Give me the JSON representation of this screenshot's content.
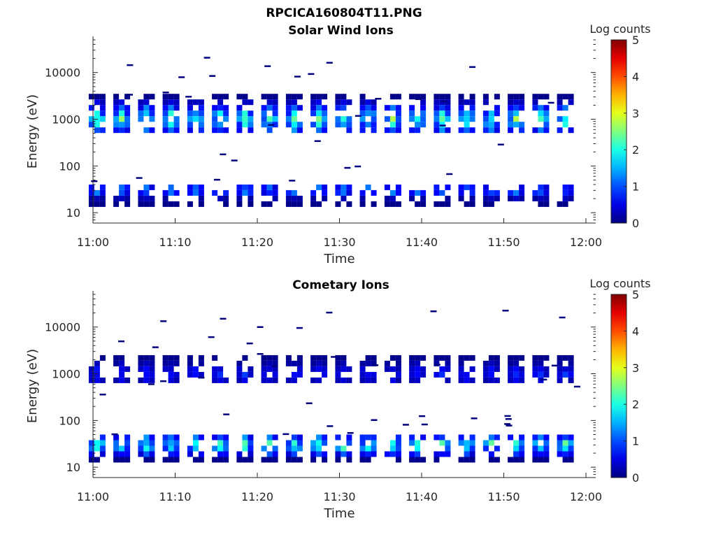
{
  "figure_title": "RPCICA160804T11.PNG",
  "chart_data": [
    {
      "type": "heatmap",
      "title": "Solar Wind Ions",
      "xlabel": "Time",
      "ylabel": "Energy (eV)",
      "x_ticks": [
        "11:00",
        "11:10",
        "11:20",
        "11:30",
        "11:40",
        "11:50",
        "12:00"
      ],
      "y_ticks": [
        "10",
        "100",
        "1000",
        "10000"
      ],
      "y_scale": "log",
      "xlim": [
        "11:00",
        "12:00"
      ],
      "ylim": [
        6,
        50000
      ],
      "colorbar": {
        "label": "Log counts",
        "ticks": [
          "0",
          "1",
          "2",
          "3",
          "4",
          "5"
        ],
        "range": [
          0,
          5
        ],
        "colormap": "jet"
      },
      "sweep_times_min": [
        0.5,
        3.5,
        6.5,
        9.5,
        12.5,
        15.5,
        18.5,
        21.5,
        24.5,
        27.5,
        30.5,
        33.5,
        36.5,
        39.5,
        42.5,
        45.5,
        48.5,
        51.5,
        54.5,
        57.5
      ],
      "bands": [
        {
          "name": "solar-wind",
          "center_eV": 1000,
          "low_eV": 600,
          "high_eV": 3500,
          "peak_log_counts": 2.9
        },
        {
          "name": "low-energy",
          "center_eV": 30,
          "low_eV": 17,
          "high_eV": 40,
          "peak_log_counts": 1.8
        }
      ],
      "grid": false
    },
    {
      "type": "heatmap",
      "title": "Cometary Ions",
      "xlabel": "Time",
      "ylabel": "Energy (eV)",
      "x_ticks": [
        "11:00",
        "11:10",
        "11:20",
        "11:30",
        "11:40",
        "11:50",
        "12:00"
      ],
      "y_ticks": [
        "10",
        "100",
        "1000",
        "10000"
      ],
      "y_scale": "log",
      "xlim": [
        "11:00",
        "12:00"
      ],
      "ylim": [
        6,
        50000
      ],
      "colorbar": {
        "label": "Log counts",
        "ticks": [
          "0",
          "1",
          "2",
          "3",
          "4",
          "5"
        ],
        "range": [
          0,
          5
        ],
        "colormap": "jet"
      },
      "sweep_times_min": [
        0.5,
        3.5,
        6.5,
        9.5,
        12.5,
        15.5,
        18.5,
        21.5,
        24.5,
        27.5,
        30.5,
        33.5,
        36.5,
        39.5,
        42.5,
        45.5,
        48.5,
        51.5,
        54.5,
        57.5
      ],
      "bands": [
        {
          "name": "high-energy",
          "center_eV": 1000,
          "low_eV": 700,
          "high_eV": 2500,
          "peak_log_counts": 1.0
        },
        {
          "name": "cometary",
          "center_eV": 30,
          "low_eV": 15,
          "high_eV": 50,
          "peak_log_counts": 3.0
        }
      ],
      "grid": false
    }
  ]
}
